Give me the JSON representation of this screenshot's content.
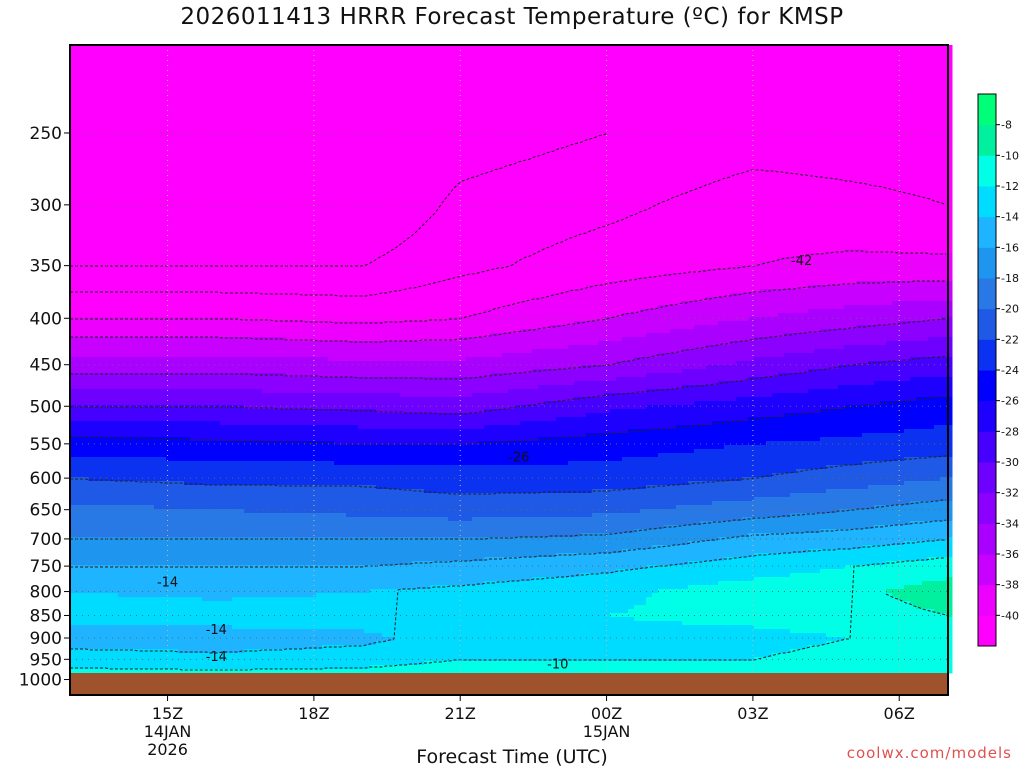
{
  "title": "2026011413 HRRR Forecast Temperature (ºC) for KMSP",
  "credit": "coolwx.com/models",
  "colors": {
    "ground": "#a0522d",
    "text": "#111111",
    "credit": "#e05050"
  },
  "chart_data": {
    "type": "heatmap",
    "title": "2026011413 HRRR Forecast Temperature (ºC) for KMSP",
    "xlabel": "Forecast Time (UTC)",
    "ylabel": "",
    "x_ticks": [
      {
        "label": "15Z",
        "sub": [
          "14JAN",
          "2026"
        ],
        "hour": 2
      },
      {
        "label": "18Z",
        "sub": [],
        "hour": 5
      },
      {
        "label": "21Z",
        "sub": [],
        "hour": 8
      },
      {
        "label": "00Z",
        "sub": [
          "15JAN"
        ],
        "hour": 11
      },
      {
        "label": "03Z",
        "sub": [],
        "hour": 14
      },
      {
        "label": "06Z",
        "sub": [],
        "hour": 17
      }
    ],
    "x_range_hours": [
      0,
      18
    ],
    "y_axis": "pressure (hPa), log scale, inverted",
    "y_range_hpa": [
      1040,
      200
    ],
    "y_ticks": [
      250,
      300,
      350,
      400,
      450,
      500,
      550,
      600,
      650,
      700,
      750,
      800,
      850,
      900,
      950,
      1000
    ],
    "grid": true,
    "colorbar": {
      "levels": [
        -40,
        -38,
        -36,
        -34,
        -32,
        -30,
        -28,
        -26,
        -24,
        -22,
        -20,
        -18,
        -16,
        -14,
        -12,
        -10,
        -8
      ],
      "labels": [
        -40,
        -38,
        -36,
        -34,
        -32,
        -30,
        -28,
        -26,
        -24,
        -22,
        -20,
        -18,
        -16,
        -14,
        -12,
        -10,
        -8
      ],
      "colors": [
        "#ff00ff",
        "#ee00ff",
        "#c800ff",
        "#aa00ff",
        "#8c00ff",
        "#6e00ff",
        "#4600ff",
        "#1e00ff",
        "#0000ff",
        "#0a32f0",
        "#1e5ae6",
        "#2878e6",
        "#1e96f0",
        "#1eb4ff",
        "#00dcff",
        "#00ffe6",
        "#00f0a0",
        "#00ff78"
      ]
    },
    "contour_labels": [
      {
        "value": "-42",
        "hour": 15.0,
        "p": 345
      },
      {
        "value": "-26",
        "hour": 9.2,
        "p": 568
      },
      {
        "value": "-14",
        "hour": 2.0,
        "p": 780
      },
      {
        "value": "-14",
        "hour": 3.0,
        "p": 880
      },
      {
        "value": "-14",
        "hour": 3.0,
        "p": 942
      },
      {
        "value": "-10",
        "hour": 10.0,
        "p": 960
      }
    ],
    "profiles": [
      {
        "hour": 0,
        "p": [
          1000,
          950,
          900,
          850,
          800,
          750,
          700,
          650,
          600,
          550,
          500,
          450,
          400,
          350,
          300,
          250,
          200
        ],
        "t": [
          -10.5,
          -13,
          -15,
          -13,
          -14,
          -16,
          -18,
          -19.5,
          -22,
          -25,
          -30,
          -35,
          -40,
          -44,
          -46,
          -46,
          -46
        ]
      },
      {
        "hour": 3,
        "p": [
          1000,
          950,
          900,
          850,
          800,
          750,
          700,
          650,
          600,
          550,
          500,
          450,
          400,
          350,
          300,
          250,
          200
        ],
        "t": [
          -10.5,
          -13.5,
          -15,
          -13,
          -14.5,
          -16,
          -18,
          -20,
          -22.5,
          -25.5,
          -30,
          -35,
          -40,
          -44,
          -46,
          -46,
          -46
        ]
      },
      {
        "hour": 6,
        "p": [
          1000,
          950,
          900,
          850,
          800,
          750,
          700,
          650,
          600,
          550,
          500,
          450,
          400,
          350,
          300,
          250,
          200
        ],
        "t": [
          -10.5,
          -13,
          -14.5,
          -13,
          -14,
          -16,
          -18,
          -20.5,
          -22.5,
          -26,
          -30.5,
          -35.5,
          -40.5,
          -44,
          -46,
          -46,
          -46
        ]
      },
      {
        "hour": 8,
        "p": [
          1000,
          950,
          900,
          850,
          800,
          750,
          700,
          650,
          600,
          550,
          500,
          450,
          400,
          350,
          300,
          250,
          200
        ],
        "t": [
          -10,
          -12,
          -13,
          -12.5,
          -13.5,
          -15.5,
          -18,
          -21,
          -23,
          -26,
          -31,
          -35.5,
          -40,
          -42.5,
          -43.5,
          -45,
          -45
        ]
      },
      {
        "hour": 11,
        "p": [
          1000,
          950,
          900,
          850,
          800,
          750,
          700,
          650,
          600,
          550,
          500,
          450,
          400,
          350,
          300,
          250,
          200
        ],
        "t": [
          -10,
          -12,
          -12.5,
          -12,
          -12.5,
          -14.5,
          -17.5,
          -20.5,
          -23,
          -25,
          -28.5,
          -34,
          -38,
          -41,
          -42.5,
          -44,
          -44
        ]
      },
      {
        "hour": 14,
        "p": [
          1000,
          950,
          900,
          850,
          800,
          750,
          700,
          650,
          600,
          550,
          500,
          450,
          400,
          350,
          300,
          250,
          200
        ],
        "t": [
          -10,
          -12,
          -12.5,
          -11.5,
          -11,
          -13,
          -15.5,
          -19,
          -22,
          -24,
          -27,
          -31.5,
          -36,
          -40,
          -41,
          -43,
          -43
        ]
      },
      {
        "hour": 16,
        "p": [
          1000,
          950,
          900,
          850,
          800,
          750,
          700,
          650,
          600,
          550,
          500,
          450,
          400,
          350,
          300,
          250,
          200
        ],
        "t": [
          -10,
          -11.5,
          -12,
          -11,
          -10.5,
          -12,
          -15,
          -18,
          -21,
          -23.5,
          -26,
          -30,
          -35,
          -39.5,
          -41.5,
          -43,
          -43
        ]
      },
      {
        "hour": 18,
        "p": [
          1000,
          950,
          900,
          850,
          800,
          750,
          700,
          650,
          600,
          550,
          500,
          450,
          400,
          350,
          300,
          250,
          200
        ],
        "t": [
          -10,
          -11.5,
          -11.5,
          -10,
          -9,
          -11,
          -14,
          -17,
          -20,
          -23,
          -25,
          -29,
          -34,
          -39.5,
          -42,
          -43,
          -43
        ]
      }
    ]
  }
}
